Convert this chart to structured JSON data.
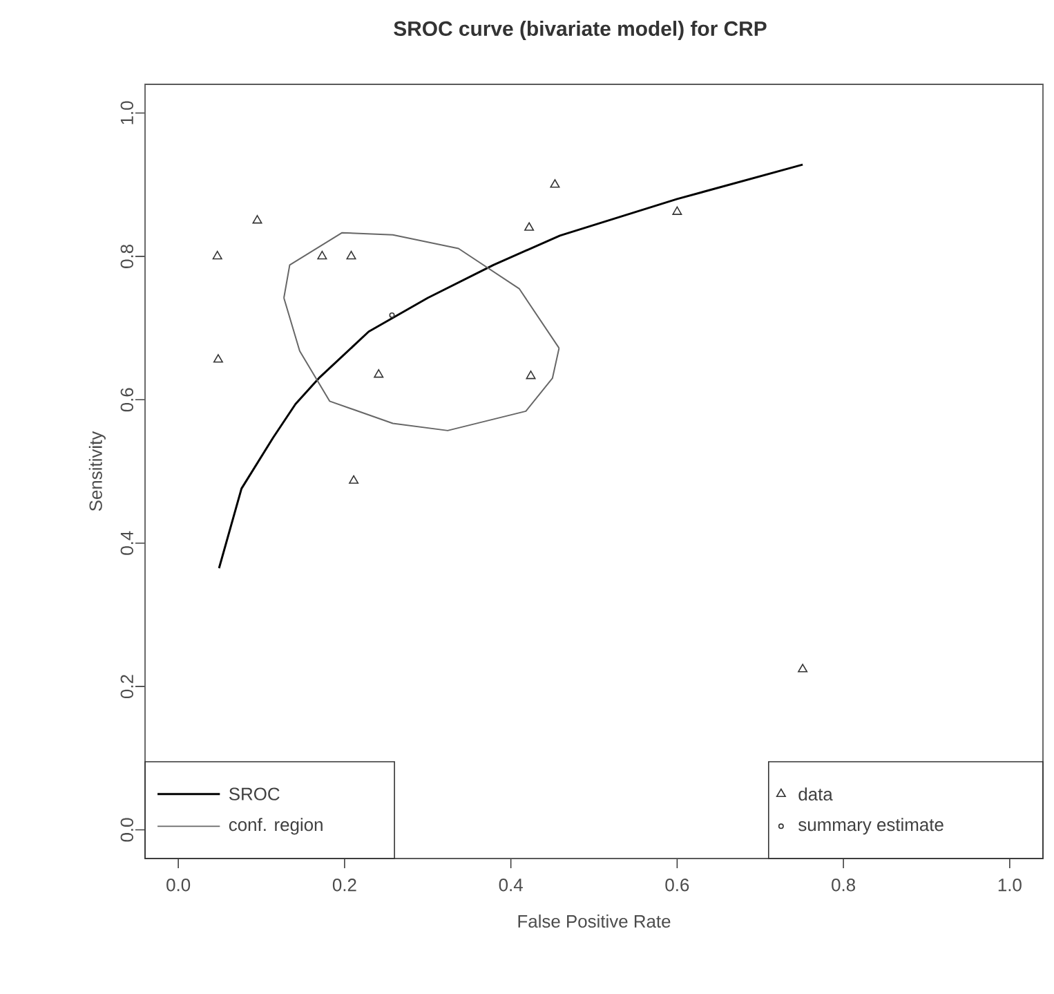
{
  "chart_data": {
    "type": "line",
    "title": "SROC curve (bivariate model) for CRP",
    "xlabel": "False Positive Rate",
    "ylabel": "Sensitivity",
    "xlim": [
      -0.04,
      1.04
    ],
    "ylim": [
      -0.04,
      1.04
    ],
    "xticks": [
      {
        "value": 0,
        "label": "0.0"
      },
      0.2,
      0.4,
      0.6,
      0.8,
      {
        "value": 1,
        "label": "1.0"
      }
    ],
    "yticks": [
      {
        "value": 0,
        "label": "0.0"
      },
      0.2,
      0.4,
      0.6,
      0.8,
      {
        "value": 1,
        "label": "1.0"
      }
    ],
    "legend": "bottom",
    "grid": false,
    "series": [
      {
        "name": "SROC",
        "color": "#000000",
        "marker": "none",
        "x": [
          0.049,
          0.076,
          0.114,
          0.141,
          0.169,
          0.229,
          0.3,
          0.379,
          0.459,
          0.6,
          0.751
        ],
        "values": [
          0.365,
          0.476,
          0.547,
          0.594,
          0.63,
          0.695,
          0.742,
          0.788,
          0.829,
          0.88,
          0.928
        ]
      },
      {
        "name": "conf. region",
        "color": "#666666",
        "marker": "none",
        "x": [
          0.127,
          0.134,
          0.197,
          0.258,
          0.337,
          0.41,
          0.458
        ],
        "values": [
          0.742,
          0.788,
          0.833,
          0.83,
          0.811,
          0.755,
          0.672
        ]
      },
      {
        "color": "#666666",
        "marker": "none",
        "x": [
          0.127,
          0.146,
          0.182,
          0.258,
          0.324,
          0.418,
          0.45,
          0.458
        ],
        "values": [
          0.742,
          0.668,
          0.598,
          0.567,
          0.557,
          0.584,
          0.63,
          0.672
        ]
      },
      {
        "name": "data",
        "type": "scatter",
        "color": "#333333",
        "marker": "triangle",
        "x": [
          0.047,
          0.095,
          0.048,
          0.173,
          0.208,
          0.241,
          0.211,
          0.424,
          0.422,
          0.453,
          0.6,
          0.751
        ],
        "values": [
          0.8,
          0.85,
          0.656,
          0.8,
          0.8,
          0.635,
          0.487,
          0.633,
          0.84,
          0.9,
          0.862,
          0.224
        ]
      },
      {
        "name": "summary estimate",
        "type": "scatter",
        "color": "#333333",
        "marker": "circle",
        "x": [
          0.257
        ],
        "values": [
          0.718
        ]
      }
    ]
  }
}
